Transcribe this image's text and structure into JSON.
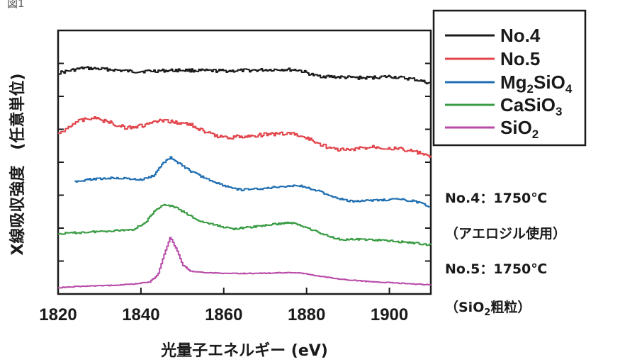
{
  "figure_label": "図1",
  "chart_data": {
    "type": "line",
    "xlabel": "光量子エネルギー (eV)",
    "ylabel": "X線吸収強度　(任意単位)",
    "xlim": [
      1820,
      1910
    ],
    "xticks": [
      1820,
      1840,
      1860,
      1880,
      1900
    ],
    "yticks_count": 7,
    "y_scale": "arbitrary, vertically offset spectra",
    "legend_position": "top-right",
    "series": [
      {
        "name": "No.4",
        "color": "#1a1a1a",
        "noise": 2.2,
        "points": [
          [
            1820,
            103
          ],
          [
            1826,
            96
          ],
          [
            1832,
            98
          ],
          [
            1838,
            101
          ],
          [
            1844,
            100
          ],
          [
            1850,
            99
          ],
          [
            1856,
            100
          ],
          [
            1862,
            100
          ],
          [
            1868,
            99
          ],
          [
            1874,
            98
          ],
          [
            1878,
            99
          ],
          [
            1882,
            107
          ],
          [
            1888,
            109
          ],
          [
            1894,
            110
          ],
          [
            1900,
            108
          ],
          [
            1906,
            112
          ],
          [
            1910,
            118
          ]
        ]
      },
      {
        "name": "No.5",
        "color": "#e2444b",
        "noise": 2.6,
        "points": [
          [
            1820,
            190
          ],
          [
            1824,
            172
          ],
          [
            1828,
            166
          ],
          [
            1832,
            172
          ],
          [
            1836,
            180
          ],
          [
            1840,
            178
          ],
          [
            1844,
            171
          ],
          [
            1848,
            172
          ],
          [
            1852,
            176
          ],
          [
            1856,
            188
          ],
          [
            1860,
            194
          ],
          [
            1864,
            193
          ],
          [
            1870,
            190
          ],
          [
            1876,
            188
          ],
          [
            1880,
            195
          ],
          [
            1883,
            203
          ],
          [
            1886,
            210
          ],
          [
            1890,
            212
          ],
          [
            1896,
            207
          ],
          [
            1902,
            210
          ],
          [
            1906,
            214
          ],
          [
            1910,
            222
          ]
        ]
      },
      {
        "name": "Mg2SiO4",
        "color": "#1f6eb1",
        "noise": 1.3,
        "points": [
          [
            1824,
            256
          ],
          [
            1828,
            253
          ],
          [
            1834,
            251
          ],
          [
            1840,
            254
          ],
          [
            1843,
            248
          ],
          [
            1845,
            232
          ],
          [
            1847,
            222
          ],
          [
            1849,
            230
          ],
          [
            1852,
            242
          ],
          [
            1856,
            253
          ],
          [
            1860,
            262
          ],
          [
            1864,
            268
          ],
          [
            1870,
            266
          ],
          [
            1874,
            263
          ],
          [
            1878,
            262
          ],
          [
            1882,
            268
          ],
          [
            1886,
            277
          ],
          [
            1890,
            284
          ],
          [
            1896,
            283
          ],
          [
            1902,
            281
          ],
          [
            1906,
            284
          ],
          [
            1910,
            292
          ]
        ]
      },
      {
        "name": "CaSiO3",
        "color": "#3a9c44",
        "noise": 1.3,
        "points": [
          [
            1820,
            330
          ],
          [
            1826,
            328
          ],
          [
            1832,
            326
          ],
          [
            1838,
            324
          ],
          [
            1841,
            314
          ],
          [
            1843,
            300
          ],
          [
            1845,
            289
          ],
          [
            1848,
            292
          ],
          [
            1851,
            302
          ],
          [
            1854,
            312
          ],
          [
            1858,
            318
          ],
          [
            1862,
            323
          ],
          [
            1866,
            321
          ],
          [
            1870,
            318
          ],
          [
            1876,
            314
          ],
          [
            1880,
            321
          ],
          [
            1884,
            331
          ],
          [
            1888,
            338
          ],
          [
            1894,
            338
          ],
          [
            1900,
            340
          ],
          [
            1906,
            343
          ],
          [
            1910,
            346
          ]
        ]
      },
      {
        "name": "SiO2",
        "color": "#b84aa8",
        "noise": 0.5,
        "points": [
          [
            1820,
            406
          ],
          [
            1826,
            404
          ],
          [
            1832,
            403
          ],
          [
            1838,
            401
          ],
          [
            1842,
            398
          ],
          [
            1844,
            388
          ],
          [
            1845.5,
            360
          ],
          [
            1847,
            335
          ],
          [
            1848.5,
            352
          ],
          [
            1850,
            374
          ],
          [
            1852,
            383
          ],
          [
            1856,
            385
          ],
          [
            1862,
            386
          ],
          [
            1868,
            386
          ],
          [
            1874,
            385
          ],
          [
            1878,
            385
          ],
          [
            1882,
            389
          ],
          [
            1888,
            394
          ],
          [
            1894,
            397
          ],
          [
            1900,
            399
          ],
          [
            1906,
            401
          ],
          [
            1910,
            402
          ]
        ]
      }
    ]
  },
  "legend": [
    {
      "label": "No.4"
    },
    {
      "label": "No.5"
    },
    {
      "label_main": "Mg",
      "sub1": "2",
      "mid": "SiO",
      "sub2": "4"
    },
    {
      "label_main": "CaSiO",
      "sub1": "3"
    },
    {
      "label_main": "SiO",
      "sub1": "2"
    }
  ],
  "annotations": {
    "no4_condition": "No.4：1750℃",
    "no4_material": "（アエロジル使用）",
    "no5_condition": "No.5：1750℃",
    "no5_material_a": "（SiO",
    "no5_material_sub": "2",
    "no5_material_b": "粗粒）"
  }
}
